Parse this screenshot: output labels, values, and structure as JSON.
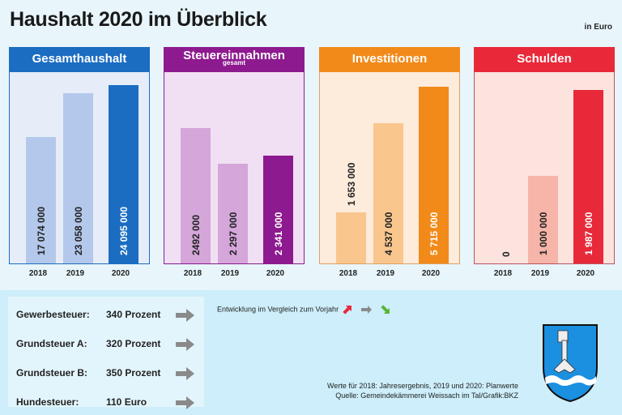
{
  "header": {
    "title": "Haushalt 2020 im Überblick",
    "unit": "in Euro"
  },
  "chart_data": [
    {
      "type": "bar",
      "title": "Gesamthaushalt",
      "subtitle": "",
      "categories": [
        "2018",
        "2019",
        "2020"
      ],
      "values": [
        17074000,
        23058000,
        24095000
      ],
      "labels": [
        "17 074 000",
        "23 058 000",
        "24 095 000"
      ],
      "ylim": [
        0,
        26000000
      ],
      "header_color": "#1b6dc1",
      "bg_color": "#e6edf8",
      "light_color": "#b3c8ea",
      "dark_color": "#1b6dc1",
      "border_color": "#1b6dc1"
    },
    {
      "type": "bar",
      "title": "Steuereinnahmen",
      "subtitle": "gesamt",
      "categories": [
        "2018",
        "2019",
        "2020"
      ],
      "values": [
        2492000,
        2297000,
        2341000
      ],
      "labels": [
        "2492 000",
        "2 297 000",
        "2 341 000"
      ],
      "ylim": [
        1750000,
        2800000
      ],
      "header_color": "#8d1a8f",
      "bg_color": "#f1e0f3",
      "light_color": "#d4a6d9",
      "dark_color": "#8d1a8f",
      "border_color": "#8d1a8f"
    },
    {
      "type": "bar",
      "title": "Investitionen",
      "subtitle": "",
      "categories": [
        "2018",
        "2019",
        "2020"
      ],
      "values": [
        1653000,
        4537000,
        5715000
      ],
      "labels": [
        "1 653 000",
        "4 537 000",
        "5 715 000"
      ],
      "ylim": [
        0,
        6200000
      ],
      "header_color": "#f28a1a",
      "bg_color": "#fdebdc",
      "light_color": "#f9c68d",
      "dark_color": "#f28a1a",
      "border_color": "#e0a060"
    },
    {
      "type": "bar",
      "title": "Schulden",
      "subtitle": "",
      "categories": [
        "2018",
        "2019",
        "2020"
      ],
      "values": [
        0,
        1000000,
        1987000
      ],
      "labels": [
        "0",
        "1 000 000",
        "1 987 000"
      ],
      "ylim": [
        0,
        2200000
      ],
      "header_color": "#e8293a",
      "bg_color": "#fce3de",
      "light_color": "#f6b5a8",
      "dark_color": "#e8293a",
      "border_color": "#c0525f"
    }
  ],
  "taxes": [
    {
      "label": "Gewerbesteuer:",
      "value": "340 Prozent",
      "trend": "gleich"
    },
    {
      "label": "Grundsteuer A:",
      "value": "320 Prozent",
      "trend": "gleich"
    },
    {
      "label": "Grundsteuer B:",
      "value": "350 Prozent",
      "trend": "gleich"
    },
    {
      "label": "Hundesteuer:",
      "value": "110 Euro",
      "trend": "gleich"
    }
  ],
  "legend": {
    "text": "Entwicklung im Vergleich zum Vorjahr",
    "up_color": "#e8293a",
    "same_color": "#8a8a8a",
    "down_color": "#5cb33a"
  },
  "footnote": {
    "line1": "Werte für 2018: Jahresergebnis, 2019 und 2020: Planwerte",
    "line2": "Quelle:  Gemeindekämmerei Weissach im Tal/Grafik:BKZ"
  },
  "crest": {
    "shield_color": "#1b8fe0",
    "key_color": "#e8e8e8"
  }
}
